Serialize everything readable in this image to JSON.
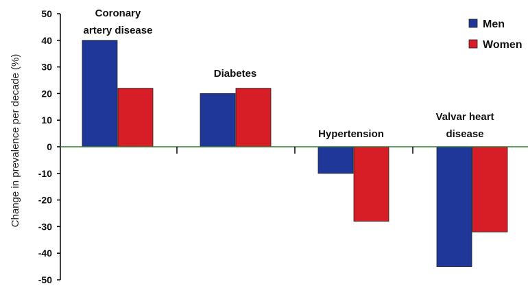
{
  "chart_data": {
    "type": "bar",
    "title": "",
    "xlabel": "",
    "ylabel": "Change in prevalence per decade (%)",
    "ylim": [
      -50,
      50
    ],
    "yticks": [
      50,
      40,
      30,
      20,
      10,
      0,
      -10,
      -20,
      -30,
      -40,
      -50
    ],
    "categories": [
      [
        "Coronary",
        "artery disease"
      ],
      [
        "Diabetes"
      ],
      [
        "Hypertension"
      ],
      [
        "Valvar heart",
        "disease"
      ]
    ],
    "series": [
      {
        "name": "Men",
        "color": "#1e3799",
        "values": [
          40,
          20,
          -10,
          -45
        ]
      },
      {
        "name": "Women",
        "color": "#d71d25",
        "values": [
          22,
          22,
          -28,
          -32
        ]
      }
    ],
    "legend_position": "top-right",
    "zero_line_color": "#2e7d32",
    "grid": false
  }
}
